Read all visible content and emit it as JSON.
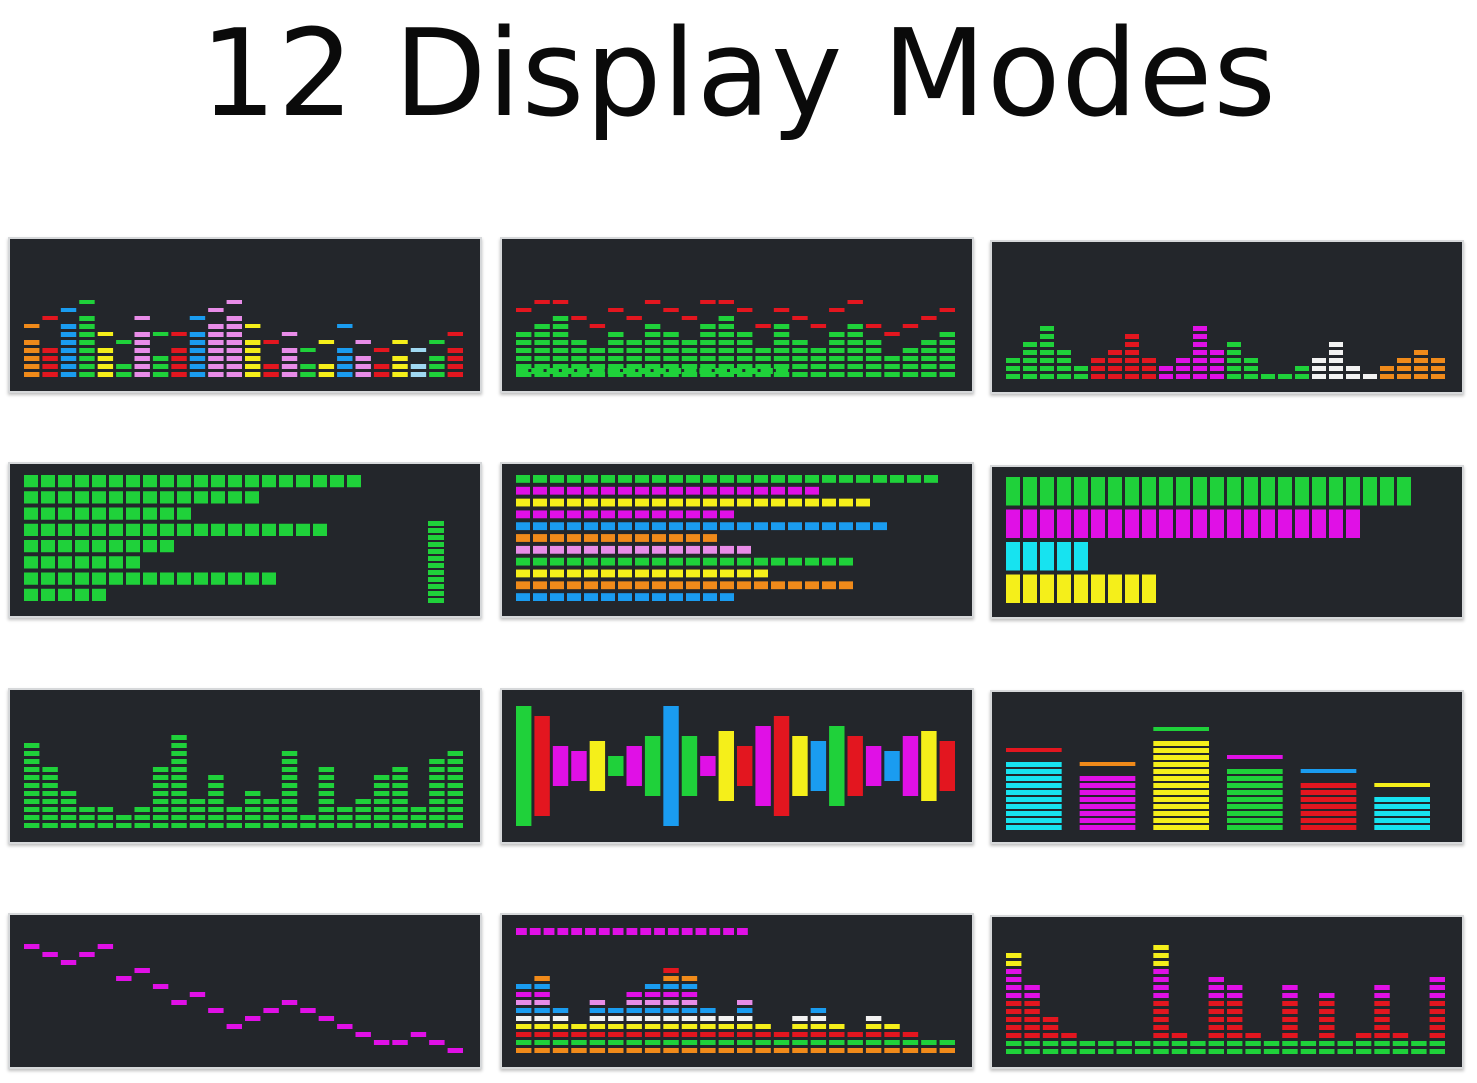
{
  "title": "12 Display Modes",
  "palette": {
    "background": "#23262b",
    "green": "#1fd13a",
    "red": "#e3161f",
    "magenta": "#e010e6",
    "blue": "#1a9cf0",
    "yellow": "#f5ef1a",
    "orange": "#f08a1a",
    "white": "#f2f2f2",
    "cyan": "#17e3f0",
    "pink": "#e88ce8",
    "lightblue": "#9fd8f2"
  },
  "modes": [
    {
      "name": "multicolor-spectrum",
      "type": "vbars-color",
      "levels": [
        5,
        4,
        7,
        8,
        4,
        2,
        6,
        3,
        4,
        6,
        7,
        8,
        5,
        2,
        4,
        2,
        2,
        4,
        3,
        2,
        3,
        2,
        3,
        4
      ],
      "peaks": [
        6,
        7,
        8,
        9,
        5,
        4,
        7,
        5,
        5,
        7,
        8,
        9,
        6,
        4,
        5,
        3,
        4,
        6,
        4,
        3,
        4,
        3,
        4,
        5
      ],
      "colors": [
        "orange",
        "red",
        "blue",
        "green",
        "yellow",
        "green",
        "pink",
        "green",
        "red",
        "blue",
        "pink",
        "pink",
        "yellow",
        "red",
        "pink",
        "green",
        "yellow",
        "blue",
        "pink",
        "red",
        "yellow",
        "lightblue",
        "green",
        "red"
      ]
    },
    {
      "name": "green-spectrum-with-red-peaks",
      "type": "vbars-peak",
      "levels": [
        6,
        7,
        8,
        5,
        4,
        6,
        5,
        7,
        6,
        5,
        7,
        8,
        6,
        4,
        7,
        5,
        4,
        6,
        7,
        5,
        3,
        4,
        5,
        6
      ],
      "peaks": [
        8,
        9,
        9,
        7,
        6,
        8,
        7,
        9,
        8,
        7,
        9,
        9,
        8,
        6,
        8,
        7,
        6,
        8,
        9,
        6,
        5,
        6,
        7,
        8
      ],
      "footer_cells": 18
    },
    {
      "name": "four-band-spectrum",
      "type": "vbars-bands",
      "levels": [
        3,
        5,
        7,
        4,
        2,
        3,
        4,
        6,
        3,
        2,
        3,
        7,
        4,
        5,
        3,
        1,
        1,
        2,
        3,
        5,
        2,
        1,
        2,
        3,
        4,
        3
      ],
      "band_colors": [
        "green",
        "red",
        "magenta",
        "green",
        "white",
        "orange"
      ]
    },
    {
      "name": "horizontal-green-bars",
      "type": "hbars-green",
      "lengths": [
        20,
        14,
        10,
        18,
        9,
        7,
        15,
        5
      ],
      "side_meter": 6
    },
    {
      "name": "horizontal-multicolor-bars",
      "type": "hbars-color",
      "lengths": [
        25,
        18,
        21,
        13,
        22,
        12,
        14,
        20,
        15,
        20,
        13
      ],
      "colors": [
        "green",
        "magenta",
        "yellow",
        "magenta",
        "blue",
        "orange",
        "pink",
        "green",
        "yellow",
        "orange",
        "blue"
      ]
    },
    {
      "name": "four-channel-horizontal-meters",
      "type": "hbars-four",
      "lengths": [
        24,
        21,
        5,
        9
      ],
      "colors": [
        "green",
        "magenta",
        "cyan",
        "yellow"
      ]
    },
    {
      "name": "green-spectrum",
      "type": "vbars-peak",
      "levels": [
        11,
        8,
        5,
        3,
        3,
        2,
        3,
        8,
        12,
        4,
        7,
        3,
        5,
        4,
        10,
        2,
        8,
        3,
        4,
        7,
        8,
        3,
        9,
        10
      ],
      "peaks": [],
      "footer_cells": 0
    },
    {
      "name": "mirrored-waveform",
      "type": "mirror",
      "levels": [
        12,
        10,
        4,
        3,
        5,
        2,
        4,
        6,
        12,
        6,
        2,
        7,
        4,
        8,
        10,
        6,
        5,
        8,
        6,
        4,
        3,
        6,
        7,
        5
      ],
      "colors": [
        "green",
        "red",
        "magenta",
        "magenta",
        "yellow",
        "green",
        "magenta",
        "green",
        "blue",
        "green",
        "magenta",
        "yellow",
        "red",
        "magenta",
        "red",
        "yellow",
        "blue",
        "green",
        "red",
        "magenta",
        "blue",
        "magenta",
        "yellow",
        "red"
      ]
    },
    {
      "name": "six-channel-level-meter",
      "type": "channels",
      "levels": [
        10,
        8,
        13,
        9,
        7,
        5
      ],
      "colors": [
        "cyan",
        "magenta",
        "yellow",
        "green",
        "red",
        "cyan"
      ],
      "peak_colors": [
        "red",
        "orange",
        "green",
        "magenta",
        "blue",
        "yellow"
      ]
    },
    {
      "name": "magenta-peak-line",
      "type": "dots",
      "levels": [
        14,
        13,
        12,
        13,
        14,
        10,
        11,
        9,
        7,
        8,
        6,
        4,
        5,
        6,
        7,
        6,
        5,
        4,
        3,
        2,
        2,
        3,
        2,
        1
      ],
      "color": "magenta"
    },
    {
      "name": "stacked-multicolor-spectrum",
      "type": "stacked",
      "levels": [
        9,
        10,
        6,
        4,
        7,
        6,
        8,
        9,
        11,
        10,
        6,
        5,
        7,
        4,
        3,
        5,
        6,
        4,
        3,
        5,
        4,
        3,
        2,
        2
      ],
      "header_cells": 17
    },
    {
      "name": "tricolor-spectrum",
      "type": "tricolor",
      "levels": [
        13,
        9,
        5,
        3,
        2,
        2,
        2,
        2,
        14,
        3,
        2,
        10,
        9,
        3,
        2,
        9,
        2,
        8,
        2,
        3,
        9,
        3,
        2,
        10
      ]
    }
  ]
}
